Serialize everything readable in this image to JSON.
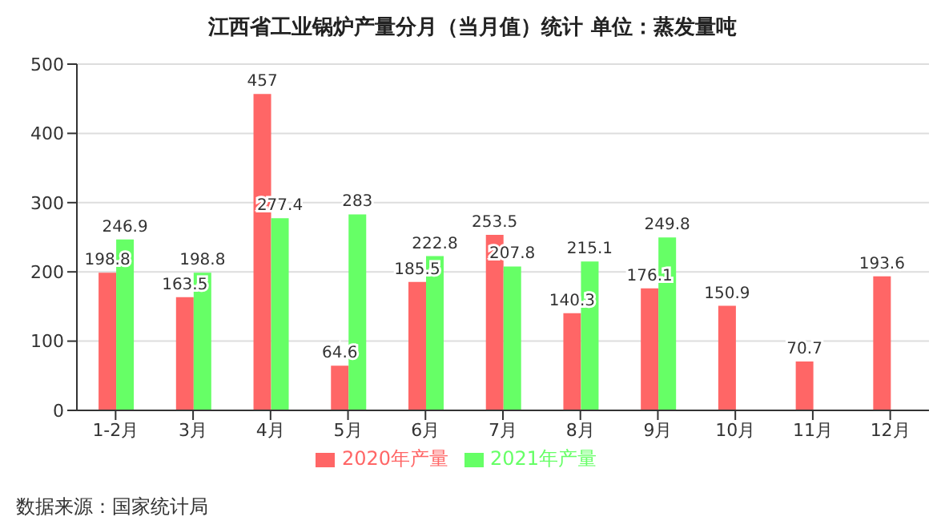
{
  "chart_data": {
    "type": "bar",
    "title": "江西省工业锅炉产量分月（当月值）统计 单位：蒸发量吨",
    "categories": [
      "1-2月",
      "3月",
      "4月",
      "5月",
      "6月",
      "7月",
      "8月",
      "9月",
      "10月",
      "11月",
      "12月"
    ],
    "series": [
      {
        "name": "2020年产量",
        "color": "#ff6666",
        "values": [
          198.8,
          163.5,
          457,
          64.6,
          185.5,
          253.5,
          140.3,
          176.1,
          150.9,
          70.7,
          193.6
        ]
      },
      {
        "name": "2021年产量",
        "color": "#66ff66",
        "values": [
          246.9,
          198.8,
          277.4,
          283,
          222.8,
          207.8,
          215.1,
          249.8,
          null,
          null,
          null
        ]
      }
    ],
    "ylim": [
      0,
      500
    ],
    "yticks": [
      0,
      100,
      200,
      300,
      400,
      500
    ],
    "grid": "y",
    "legend": "bottom",
    "data_labels": true,
    "annotations": [
      "数据来源：国家统计局"
    ]
  }
}
